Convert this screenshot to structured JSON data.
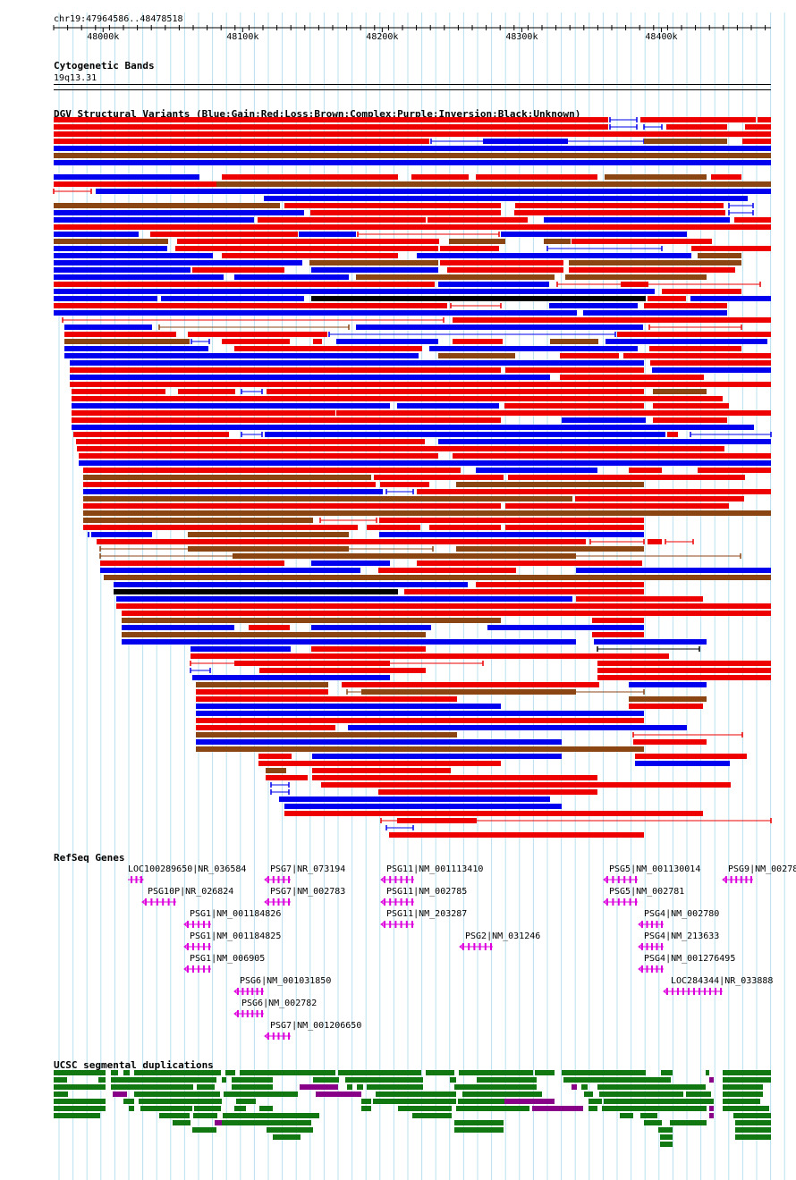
{
  "region": {
    "label": "chr19:47964586..48478518",
    "start": 47964586,
    "end": 48478518
  },
  "ruler": {
    "ticks": [
      {
        "label": "48000k",
        "pos": 48000000
      },
      {
        "label": "48100k",
        "pos": 48100000
      },
      {
        "label": "48200k",
        "pos": 48200000
      },
      {
        "label": "48300k",
        "pos": 48300000
      },
      {
        "label": "48400k",
        "pos": 48400000
      }
    ]
  },
  "tracks": {
    "cytobands": {
      "title": "Cytogenetic Bands",
      "band": "19q13.31"
    },
    "dgv": {
      "title": "DGV Structural Variants (Blue:Gain;Red:Loss;Brown:Complex;Purple:Inversion;Black:Unknown)",
      "colors": {
        "gain": "#0000ee",
        "loss": "#ee0000",
        "complex": "#8b4513",
        "inversion": "#800080",
        "unknown": "#000000"
      }
    },
    "refseq": {
      "title": "RefSeq Genes",
      "color": "#dd00dd",
      "genes": [
        {
          "label": "LOC100289650|NR_036584",
          "strand": "+"
        },
        {
          "label": "PSG7|NR_073194",
          "strand": "-"
        },
        {
          "label": "PSG11|NM_001113410",
          "strand": "-"
        },
        {
          "label": "PSG5|NM_001130014",
          "strand": "-"
        },
        {
          "label": "PSG9|NM_00278",
          "strand": "-"
        },
        {
          "label": "PSG10P|NR_026824",
          "strand": "-"
        },
        {
          "label": "PSG7|NM_002783",
          "strand": "-"
        },
        {
          "label": "PSG11|NM_002785",
          "strand": "-"
        },
        {
          "label": "PSG5|NM_002781",
          "strand": "-"
        },
        {
          "label": "PSG1|NM_001184826",
          "strand": "-"
        },
        {
          "label": "PSG11|NM_203287",
          "strand": "-"
        },
        {
          "label": "PSG4|NM_002780",
          "strand": "-"
        },
        {
          "label": "PSG1|NM_001184825",
          "strand": "-"
        },
        {
          "label": "PSG2|NM_031246",
          "strand": "-"
        },
        {
          "label": "PSG4|NM_213633",
          "strand": "-"
        },
        {
          "label": "PSG1|NM_006905",
          "strand": "-"
        },
        {
          "label": "PSG4|NM_001276495",
          "strand": "-"
        },
        {
          "label": "PSG6|NM_001031850",
          "strand": "-"
        },
        {
          "label": "LOC284344|NR_033888",
          "strand": "-"
        },
        {
          "label": "PSG6|NM_002782",
          "strand": "-"
        },
        {
          "label": "PSG7|NM_001206650",
          "strand": "-"
        }
      ]
    },
    "segdups": {
      "title": "UCSC segmental duplications",
      "colors": {
        "primary": "#117711",
        "secondary": "#880088"
      }
    }
  }
}
